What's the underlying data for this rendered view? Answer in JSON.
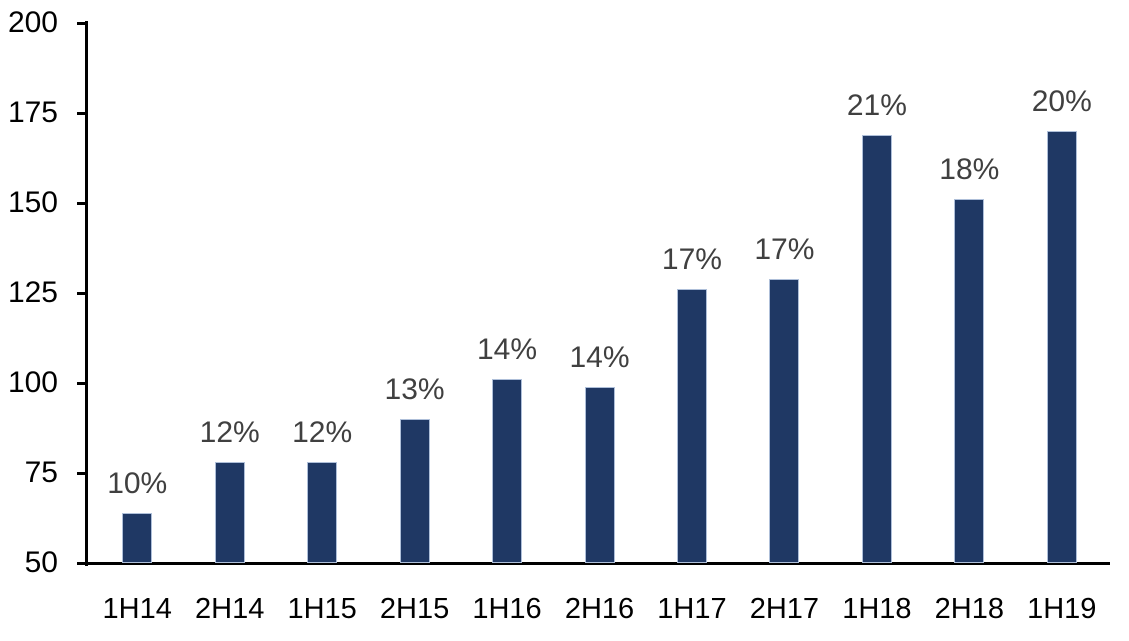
{
  "colors": {
    "bar_fill": "#1F3864",
    "bar_border": "#AEBFD9",
    "data_label": "#404040",
    "axis": "#000000",
    "background": "#FFFFFF"
  },
  "chart_data": {
    "type": "bar",
    "categories": [
      "1H14",
      "2H14",
      "1H15",
      "2H15",
      "1H16",
      "2H16",
      "1H17",
      "2H17",
      "1H18",
      "2H18",
      "1H19"
    ],
    "values": [
      64,
      78,
      78,
      90,
      101,
      99,
      126,
      129,
      169,
      151,
      170
    ],
    "bar_labels": [
      "10%",
      "12%",
      "12%",
      "13%",
      "14%",
      "14%",
      "17%",
      "17%",
      "21%",
      "18%",
      "20%"
    ],
    "title": "",
    "xlabel": "",
    "ylabel": "",
    "ylim": [
      50,
      200
    ],
    "yticks": [
      200,
      175,
      150,
      125,
      100,
      75,
      50
    ],
    "grid": false,
    "legend": false
  }
}
